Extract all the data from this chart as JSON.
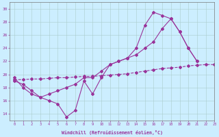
{
  "xlabel": "Windchill (Refroidissement éolien,°C)",
  "bg_color": "#cceeff",
  "grid_color": "#aacccc",
  "line_color": "#993399",
  "xlim": [
    -0.5,
    23.0
  ],
  "ylim": [
    13.0,
    31.0
  ],
  "xticks": [
    0,
    1,
    2,
    3,
    4,
    5,
    6,
    7,
    8,
    9,
    10,
    11,
    12,
    13,
    14,
    15,
    16,
    17,
    18,
    19,
    20,
    21,
    22,
    23
  ],
  "yticks": [
    14,
    16,
    18,
    20,
    22,
    24,
    26,
    28,
    30
  ],
  "series1_x": [
    0,
    1,
    2,
    3,
    4,
    5,
    6,
    7,
    8,
    9,
    10,
    11,
    12,
    13,
    14,
    15,
    16,
    17,
    18,
    19,
    20,
    21
  ],
  "series1_y": [
    19.0,
    18.5,
    17.5,
    16.5,
    16.0,
    15.5,
    13.5,
    14.5,
    19.0,
    17.0,
    19.5,
    21.5,
    22.0,
    22.5,
    24.0,
    27.5,
    29.5,
    29.0,
    28.5,
    26.5,
    24.0,
    22.0
  ],
  "series2_x": [
    0,
    1,
    2,
    3,
    4,
    5,
    6,
    7,
    8,
    9,
    10,
    11,
    12,
    13,
    14,
    15,
    16,
    17,
    18,
    19,
    20,
    21
  ],
  "series2_y": [
    19.5,
    18.0,
    17.0,
    16.5,
    17.0,
    17.5,
    18.0,
    18.5,
    19.5,
    19.5,
    20.5,
    21.5,
    22.0,
    22.5,
    23.0,
    24.0,
    25.0,
    27.0,
    28.5,
    26.5,
    24.0,
    22.0
  ],
  "series3_x": [
    0,
    1,
    2,
    3,
    4,
    5,
    6,
    7,
    8,
    9,
    10,
    11,
    12,
    13,
    14,
    15,
    16,
    17,
    18,
    19,
    20,
    21,
    22,
    23
  ],
  "series3_y": [
    19.2,
    19.2,
    19.3,
    19.3,
    19.4,
    19.5,
    19.5,
    19.6,
    19.7,
    19.7,
    19.8,
    19.9,
    20.0,
    20.1,
    20.3,
    20.5,
    20.7,
    20.9,
    21.0,
    21.1,
    21.3,
    21.4,
    21.5,
    21.5
  ]
}
